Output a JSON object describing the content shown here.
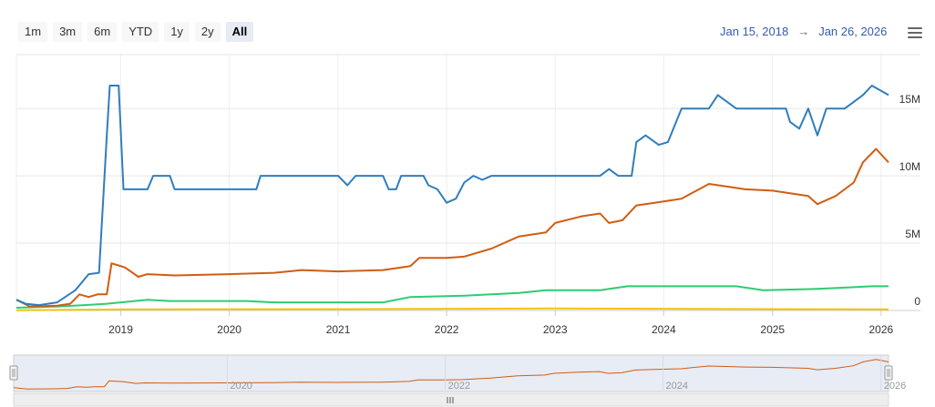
{
  "range_selector": {
    "buttons": [
      "1m",
      "3m",
      "6m",
      "YTD",
      "1y",
      "2y",
      "All"
    ],
    "selected": "All"
  },
  "date_range": {
    "from": "Jan 15, 2018",
    "arrow": "→",
    "to": "Jan 26, 2026"
  },
  "menu": {
    "icon": "hamburger-menu-icon"
  },
  "chart_data": {
    "type": "line",
    "title": "",
    "x_axis": {
      "type": "datetime",
      "range": [
        "2018-01-15",
        "2026-01-26"
      ],
      "tick_labels": [
        "2019",
        "2020",
        "2021",
        "2022",
        "2023",
        "2024",
        "2025",
        "2026"
      ]
    },
    "y_axis": {
      "range": [
        0,
        19000000
      ],
      "position": "right",
      "tick_values": [
        0,
        5000000,
        10000000,
        15000000
      ],
      "tick_labels": [
        "0",
        "5M",
        "10M",
        "15M"
      ]
    },
    "grid": true,
    "legend": "none",
    "series": [
      {
        "color": "#2f7ebc",
        "points": [
          [
            "2018-01-15",
            800000
          ],
          [
            "2018-02-15",
            500000
          ],
          [
            "2018-04-01",
            400000
          ],
          [
            "2018-06-01",
            600000
          ],
          [
            "2018-08-01",
            1500000
          ],
          [
            "2018-09-15",
            2700000
          ],
          [
            "2018-10-20",
            2800000
          ],
          [
            "2018-11-15",
            13000000
          ],
          [
            "2018-11-25",
            16700000
          ],
          [
            "2018-12-25",
            16700000
          ],
          [
            "2019-01-10",
            9000000
          ],
          [
            "2019-04-01",
            9000000
          ],
          [
            "2019-04-20",
            10000000
          ],
          [
            "2019-06-15",
            10000000
          ],
          [
            "2019-07-01",
            9000000
          ],
          [
            "2020-04-01",
            9000000
          ],
          [
            "2020-04-15",
            10000000
          ],
          [
            "2021-01-01",
            10000000
          ],
          [
            "2021-02-01",
            9300000
          ],
          [
            "2021-03-01",
            10000000
          ],
          [
            "2021-06-01",
            10000000
          ],
          [
            "2021-06-20",
            9000000
          ],
          [
            "2021-07-15",
            9000000
          ],
          [
            "2021-08-01",
            10000000
          ],
          [
            "2021-10-15",
            10000000
          ],
          [
            "2021-11-01",
            9300000
          ],
          [
            "2021-12-01",
            9000000
          ],
          [
            "2022-01-01",
            8000000
          ],
          [
            "2022-02-01",
            8300000
          ],
          [
            "2022-03-01",
            9500000
          ],
          [
            "2022-04-01",
            10000000
          ],
          [
            "2022-05-01",
            9700000
          ],
          [
            "2022-06-01",
            10000000
          ],
          [
            "2023-03-01",
            10000000
          ],
          [
            "2023-06-01",
            10000000
          ],
          [
            "2023-07-01",
            10500000
          ],
          [
            "2023-08-01",
            10000000
          ],
          [
            "2023-09-15",
            10000000
          ],
          [
            "2023-10-01",
            12500000
          ],
          [
            "2023-11-01",
            13000000
          ],
          [
            "2023-12-15",
            12300000
          ],
          [
            "2024-01-15",
            12500000
          ],
          [
            "2024-03-01",
            15000000
          ],
          [
            "2024-06-01",
            15000000
          ],
          [
            "2024-07-01",
            16000000
          ],
          [
            "2024-09-01",
            15000000
          ],
          [
            "2025-02-15",
            15000000
          ],
          [
            "2025-03-01",
            14000000
          ],
          [
            "2025-04-01",
            13500000
          ],
          [
            "2025-05-01",
            15000000
          ],
          [
            "2025-06-01",
            13000000
          ],
          [
            "2025-07-01",
            15000000
          ],
          [
            "2025-08-15",
            15000000
          ],
          [
            "2025-09-01",
            15000000
          ],
          [
            "2025-11-01",
            16000000
          ],
          [
            "2025-12-01",
            16700000
          ],
          [
            "2026-01-26",
            16000000
          ]
        ]
      },
      {
        "color": "#d05d12",
        "points": [
          [
            "2018-01-15",
            800000
          ],
          [
            "2018-03-01",
            300000
          ],
          [
            "2018-06-01",
            350000
          ],
          [
            "2018-07-15",
            500000
          ],
          [
            "2018-08-15",
            1200000
          ],
          [
            "2018-09-15",
            1000000
          ],
          [
            "2018-10-15",
            1200000
          ],
          [
            "2018-11-15",
            1200000
          ],
          [
            "2018-12-01",
            3500000
          ],
          [
            "2019-01-15",
            3200000
          ],
          [
            "2019-03-01",
            2500000
          ],
          [
            "2019-04-01",
            2700000
          ],
          [
            "2019-07-01",
            2600000
          ],
          [
            "2020-01-01",
            2700000
          ],
          [
            "2020-06-01",
            2800000
          ],
          [
            "2020-09-01",
            3000000
          ],
          [
            "2021-01-01",
            2900000
          ],
          [
            "2021-06-01",
            3000000
          ],
          [
            "2021-09-01",
            3300000
          ],
          [
            "2021-10-01",
            3900000
          ],
          [
            "2022-01-01",
            3900000
          ],
          [
            "2022-03-01",
            4000000
          ],
          [
            "2022-06-01",
            4600000
          ],
          [
            "2022-09-01",
            5500000
          ],
          [
            "2022-12-01",
            5800000
          ],
          [
            "2023-01-01",
            6500000
          ],
          [
            "2023-04-01",
            7000000
          ],
          [
            "2023-06-01",
            7200000
          ],
          [
            "2023-07-01",
            6500000
          ],
          [
            "2023-08-15",
            6700000
          ],
          [
            "2023-10-01",
            7800000
          ],
          [
            "2023-12-01",
            8000000
          ],
          [
            "2024-03-01",
            8300000
          ],
          [
            "2024-06-01",
            9400000
          ],
          [
            "2024-08-01",
            9200000
          ],
          [
            "2024-10-01",
            9000000
          ],
          [
            "2025-01-01",
            8900000
          ],
          [
            "2025-05-01",
            8500000
          ],
          [
            "2025-06-01",
            7900000
          ],
          [
            "2025-08-01",
            8500000
          ],
          [
            "2025-10-01",
            9500000
          ],
          [
            "2025-11-01",
            11000000
          ],
          [
            "2025-12-15",
            12000000
          ],
          [
            "2026-01-26",
            11000000
          ]
        ]
      },
      {
        "color": "#2ecc71",
        "points": [
          [
            "2018-01-15",
            200000
          ],
          [
            "2018-06-01",
            300000
          ],
          [
            "2018-09-01",
            400000
          ],
          [
            "2018-11-15",
            500000
          ],
          [
            "2019-01-01",
            600000
          ],
          [
            "2019-04-01",
            800000
          ],
          [
            "2019-06-15",
            700000
          ],
          [
            "2020-03-01",
            700000
          ],
          [
            "2020-06-01",
            600000
          ],
          [
            "2021-01-01",
            600000
          ],
          [
            "2021-06-01",
            600000
          ],
          [
            "2021-09-01",
            1000000
          ],
          [
            "2022-03-01",
            1100000
          ],
          [
            "2022-09-01",
            1300000
          ],
          [
            "2022-12-01",
            1500000
          ],
          [
            "2023-06-01",
            1500000
          ],
          [
            "2023-09-01",
            1800000
          ],
          [
            "2024-09-01",
            1800000
          ],
          [
            "2024-12-01",
            1500000
          ],
          [
            "2025-06-01",
            1600000
          ],
          [
            "2025-09-01",
            1700000
          ],
          [
            "2025-12-01",
            1800000
          ],
          [
            "2026-01-26",
            1800000
          ]
        ]
      },
      {
        "color": "#f1c40f",
        "points": [
          [
            "2018-01-15",
            20000
          ],
          [
            "2018-06-01",
            40000
          ],
          [
            "2019-01-01",
            80000
          ],
          [
            "2021-01-01",
            100000
          ],
          [
            "2023-01-01",
            150000
          ],
          [
            "2024-01-01",
            130000
          ],
          [
            "2025-01-01",
            100000
          ],
          [
            "2026-01-26",
            80000
          ]
        ]
      }
    ],
    "navigator": {
      "tick_labels": [
        "2020",
        "2022",
        "2024",
        "2026"
      ],
      "series_color": "#d05d12"
    }
  }
}
